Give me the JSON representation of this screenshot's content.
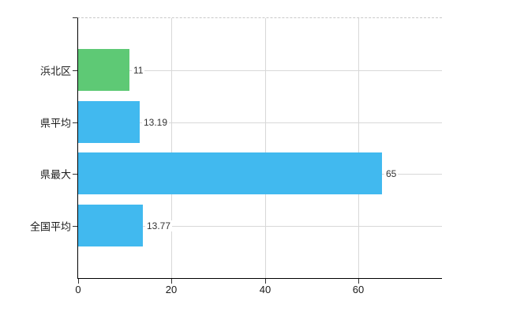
{
  "chart": {
    "background": "#ffffff",
    "axis_color": "#000000",
    "grid_color": "#d8d8d8",
    "top_border_color": "#c9c9c9",
    "category_label_color": "#1a1a1a",
    "value_label_color": "#333333"
  },
  "chart_data": {
    "type": "bar",
    "orientation": "horizontal",
    "title": "",
    "xlabel": "",
    "ylabel": "",
    "categories": [
      "浜北区",
      "県平均",
      "県最大",
      "全国平均"
    ],
    "values": [
      11,
      13.19,
      65,
      13.77
    ],
    "value_labels": [
      "11",
      "13.19",
      "65",
      "13.77"
    ],
    "bar_colors": [
      "#5ec975",
      "#41b9ef",
      "#41b9ef",
      "#41b9ef"
    ],
    "x_tick_values": [
      0,
      20,
      40,
      60
    ],
    "x_tick_labels": [
      "0",
      "20",
      "40",
      "60"
    ],
    "xlim": [
      0,
      77.7
    ],
    "grid": true,
    "legend": null
  }
}
